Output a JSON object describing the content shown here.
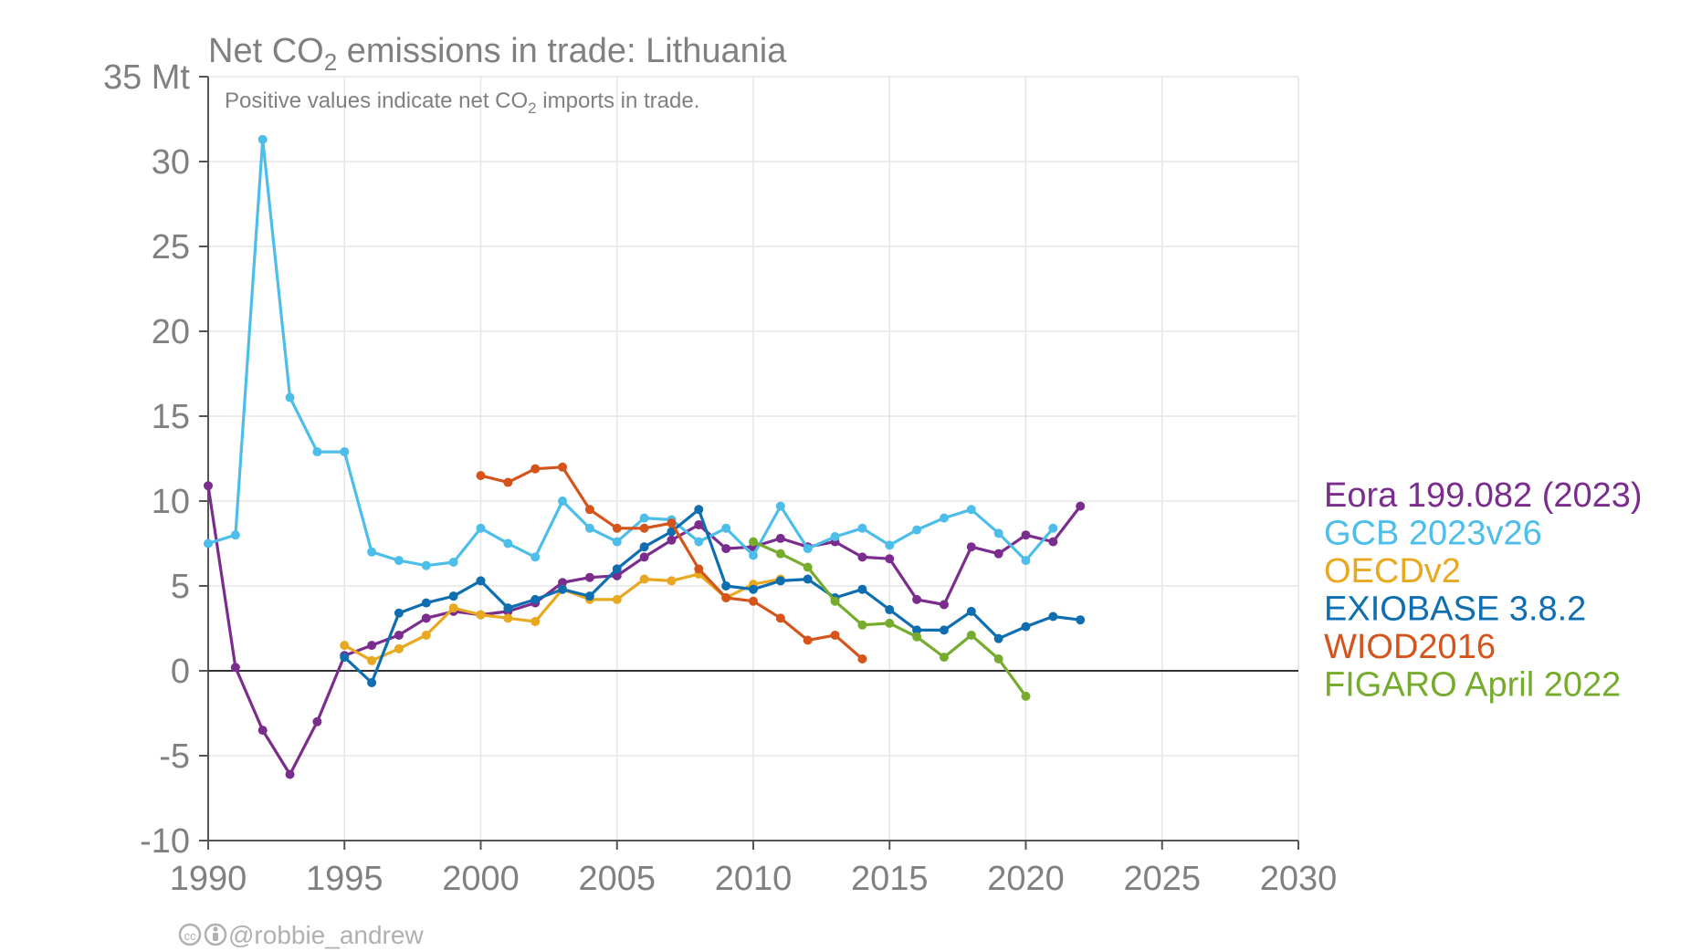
{
  "chart_data": {
    "type": "line",
    "title_main": "Net CO",
    "title_sub": "2",
    "title_rest": " emissions in trade: Lithuania",
    "subtitle_main": "Positive values indicate net CO",
    "subtitle_sub": "2",
    "subtitle_rest": " imports in trade.",
    "y_unit": "Mt",
    "xlim": [
      1990,
      2030
    ],
    "ylim": [
      -10,
      35
    ],
    "x_ticks": [
      1990,
      1995,
      2000,
      2005,
      2010,
      2015,
      2020,
      2025,
      2030
    ],
    "y_ticks": [
      -10,
      -5,
      0,
      5,
      10,
      15,
      20,
      25,
      30,
      35
    ],
    "y_tick_labels": [
      "-10",
      "-5",
      "0",
      "5",
      "10",
      "15",
      "20",
      "25",
      "30",
      "35 Mt"
    ],
    "grid": true,
    "legend_position": "right",
    "series": [
      {
        "name": "Eora 199.082 (2023)",
        "color": "#7b2d8e",
        "x": [
          1990,
          1991,
          1992,
          1993,
          1994,
          1995,
          1996,
          1997,
          1998,
          1999,
          2000,
          2001,
          2002,
          2003,
          2004,
          2005,
          2006,
          2007,
          2008,
          2009,
          2010,
          2011,
          2012,
          2013,
          2014,
          2015,
          2016,
          2017,
          2018,
          2019,
          2020,
          2021,
          2022
        ],
        "y": [
          10.9,
          0.2,
          -3.5,
          -6.1,
          -3.0,
          0.9,
          1.5,
          2.1,
          3.1,
          3.5,
          3.3,
          3.5,
          4.0,
          5.2,
          5.5,
          5.6,
          6.7,
          7.7,
          8.6,
          7.2,
          7.3,
          7.8,
          7.3,
          7.6,
          6.7,
          6.6,
          4.2,
          3.9,
          7.3,
          6.9,
          8.0,
          7.6,
          9.7
        ]
      },
      {
        "name": "GCB 2023v26",
        "color": "#4dbde9",
        "x": [
          1990,
          1991,
          1992,
          1993,
          1994,
          1995,
          1996,
          1997,
          1998,
          1999,
          2000,
          2001,
          2002,
          2003,
          2004,
          2005,
          2006,
          2007,
          2008,
          2009,
          2010,
          2011,
          2012,
          2013,
          2014,
          2015,
          2016,
          2017,
          2018,
          2019,
          2020,
          2021
        ],
        "y": [
          7.5,
          8.0,
          31.3,
          16.1,
          12.9,
          12.9,
          7.0,
          6.5,
          6.2,
          6.4,
          8.4,
          7.5,
          6.7,
          10.0,
          8.4,
          7.6,
          9.0,
          8.9,
          7.6,
          8.4,
          6.8,
          9.7,
          7.2,
          7.9,
          8.4,
          7.4,
          8.3,
          9.0,
          9.5,
          8.1,
          6.5,
          8.4
        ]
      },
      {
        "name": "OECDv2",
        "color": "#e8a820",
        "x": [
          1995,
          1996,
          1997,
          1998,
          1999,
          2000,
          2001,
          2002,
          2003,
          2004,
          2005,
          2006,
          2007,
          2008,
          2009,
          2010,
          2011
        ],
        "y": [
          1.5,
          0.6,
          1.3,
          2.1,
          3.7,
          3.3,
          3.1,
          2.9,
          4.8,
          4.2,
          4.2,
          5.4,
          5.3,
          5.7,
          4.3,
          5.1,
          5.4
        ]
      },
      {
        "name": "EXIOBASE 3.8.2",
        "color": "#0e6eb0",
        "x": [
          1995,
          1996,
          1997,
          1998,
          1999,
          2000,
          2001,
          2002,
          2003,
          2004,
          2005,
          2006,
          2007,
          2008,
          2009,
          2010,
          2011,
          2012,
          2013,
          2014,
          2015,
          2016,
          2017,
          2018,
          2019,
          2020,
          2021,
          2022
        ],
        "y": [
          0.8,
          -0.7,
          3.4,
          4.0,
          4.4,
          5.3,
          3.7,
          4.2,
          4.8,
          4.4,
          6.0,
          7.3,
          8.2,
          9.5,
          5.0,
          4.8,
          5.3,
          5.4,
          4.3,
          4.8,
          3.6,
          2.4,
          2.4,
          3.5,
          1.9,
          2.6,
          3.2,
          3.0
        ]
      },
      {
        "name": "WIOD2016",
        "color": "#d5541b",
        "x": [
          2000,
          2001,
          2002,
          2003,
          2004,
          2005,
          2006,
          2007,
          2008,
          2009,
          2010,
          2011,
          2012,
          2013,
          2014
        ],
        "y": [
          11.5,
          11.1,
          11.9,
          12.0,
          9.5,
          8.4,
          8.4,
          8.7,
          6.0,
          4.3,
          4.1,
          3.1,
          1.8,
          2.1,
          0.7
        ]
      },
      {
        "name": "FIGARO April 2022",
        "color": "#76ac2e",
        "x": [
          2010,
          2011,
          2012,
          2013,
          2014,
          2015,
          2016,
          2017,
          2018,
          2019,
          2020
        ],
        "y": [
          7.6,
          6.9,
          6.1,
          4.1,
          2.7,
          2.8,
          2.0,
          0.8,
          2.1,
          0.7,
          -1.5
        ]
      }
    ]
  },
  "credit": {
    "icons": [
      "cc-icon",
      "by-icon"
    ],
    "text": "@robbie_andrew"
  }
}
